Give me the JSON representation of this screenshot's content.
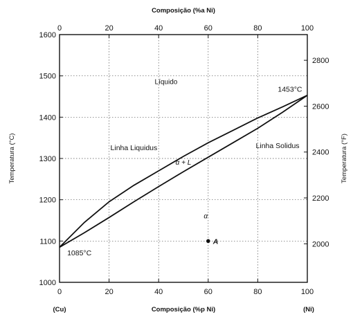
{
  "chart_data": {
    "type": "line",
    "title": "",
    "x_bottom_label": "Composição (%p Ni)",
    "x_top_label": "Composição (%a Ni)",
    "y_left_label": "Temperatura (°C)",
    "y_right_label": "Temperatura (°F)",
    "xlim": [
      0,
      100
    ],
    "ylim": [
      1000,
      1600
    ],
    "x_ticks": [
      "0",
      "20",
      "40",
      "60",
      "80",
      "100"
    ],
    "x_tick_values": [
      0,
      20,
      40,
      60,
      80,
      100
    ],
    "x_top_ticks": [
      "0",
      "20",
      "40",
      "60",
      "80",
      "100"
    ],
    "x_top_tick_values": [
      0,
      20,
      40,
      60,
      80,
      100
    ],
    "y_ticks": [
      "1000",
      "1100",
      "1200",
      "1300",
      "1400",
      "1500",
      "1600"
    ],
    "y_tick_values": [
      1000,
      1100,
      1200,
      1300,
      1400,
      1500,
      1600
    ],
    "y_right_ticks": [
      "2000",
      "2200",
      "2400",
      "2600",
      "2800"
    ],
    "y_right_tick_values": [
      2000,
      2200,
      2400,
      2600,
      2800
    ],
    "x_end_labels": {
      "left": "(Cu)",
      "right": "(Ni)"
    },
    "grid": true,
    "series": [
      {
        "name": "Linha Liquidus",
        "x": [
          0,
          10,
          20,
          30,
          40,
          50,
          60,
          70,
          80,
          90,
          100
        ],
        "y": [
          1085,
          1145,
          1195,
          1235,
          1270,
          1305,
          1338,
          1368,
          1398,
          1425,
          1453
        ]
      },
      {
        "name": "Linha Solidus",
        "x": [
          0,
          10,
          20,
          30,
          40,
          50,
          60,
          70,
          80,
          90,
          100
        ],
        "y": [
          1085,
          1120,
          1157,
          1195,
          1232,
          1268,
          1303,
          1338,
          1373,
          1412,
          1453
        ]
      }
    ],
    "regions": [
      {
        "label": "Líquido",
        "x": 43,
        "y": 1480
      },
      {
        "label": "α + L",
        "x": 50,
        "y": 1285
      },
      {
        "label": "α",
        "x": 59,
        "y": 1155
      }
    ],
    "annotations": [
      {
        "text": "Linha Liquidus",
        "x": 30,
        "y": 1320
      },
      {
        "text": "Linha Solidus",
        "x": 88,
        "y": 1325
      },
      {
        "text": "1453°C",
        "x": 93,
        "y": 1462
      },
      {
        "text": "1085°C",
        "x": 8,
        "y": 1065
      }
    ],
    "points": [
      {
        "label": "A",
        "x": 60,
        "y": 1100
      }
    ]
  }
}
